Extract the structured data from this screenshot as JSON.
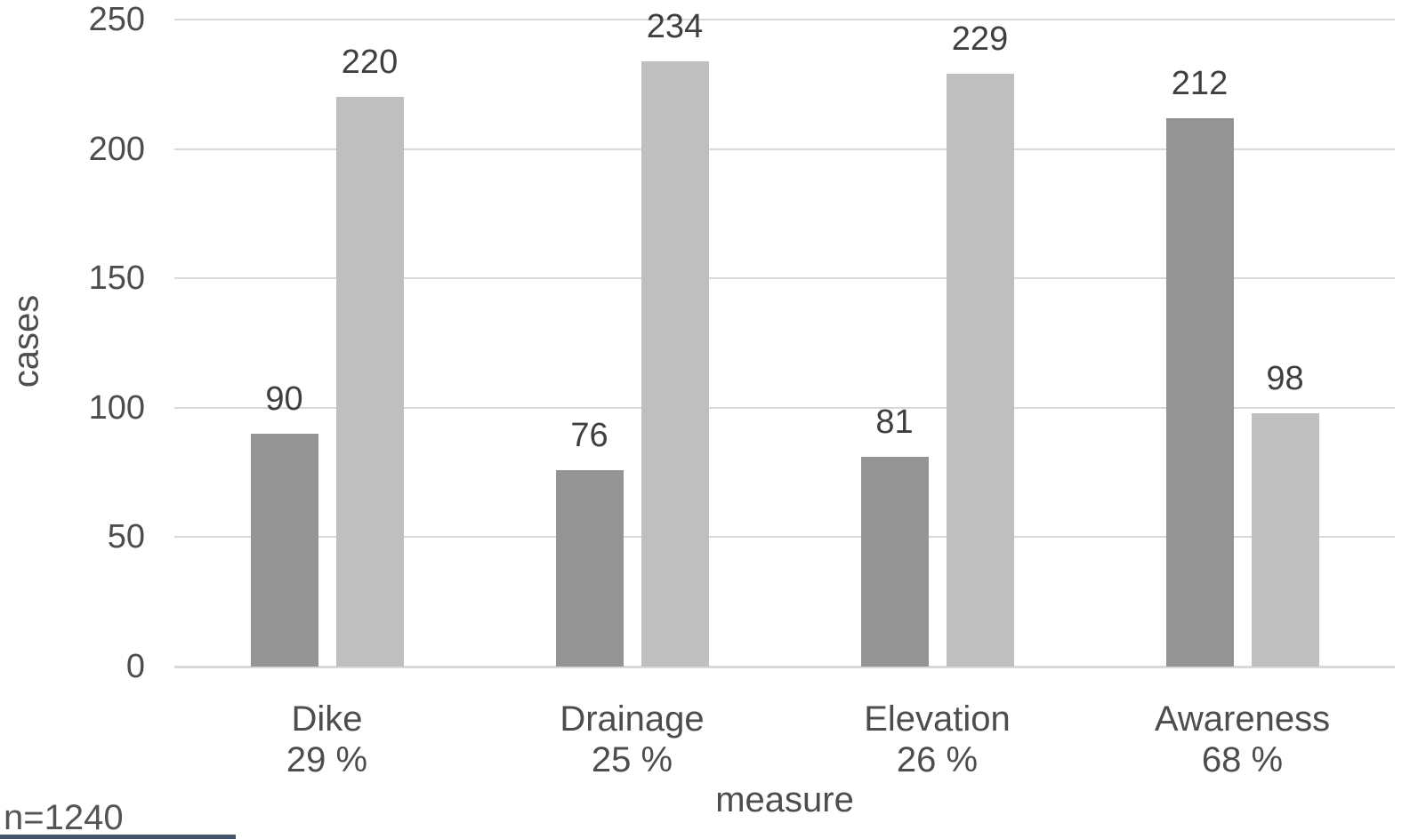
{
  "chart_data": {
    "type": "bar",
    "title": "",
    "categories": [
      "Dike",
      "Drainage",
      "Elevation",
      "Awareness"
    ],
    "category_sublabels": [
      "29 %",
      "25 %",
      "26 %",
      "68 %"
    ],
    "series": [
      {
        "name": "dark-gray",
        "color": "#949494",
        "values": [
          90,
          76,
          81,
          212
        ]
      },
      {
        "name": "light-gray",
        "color": "#bfbfbf",
        "values": [
          220,
          234,
          229,
          98
        ]
      }
    ],
    "xlabel": "measure",
    "ylabel": "cases",
    "ylim": [
      0,
      250
    ],
    "yticks": [
      0,
      50,
      100,
      150,
      200,
      250
    ],
    "grid": "horizontal",
    "legend": "none",
    "footnote": "n=1240"
  },
  "colors": {
    "gridline": "#d9d9d9",
    "text": "#4d4d4d",
    "accent_strip": "#44546a"
  }
}
